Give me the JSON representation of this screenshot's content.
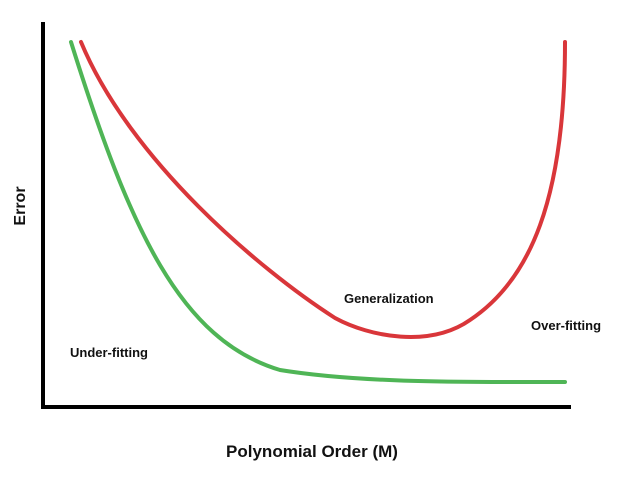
{
  "diagram": {
    "xlabel": "Polynomial Order (M)",
    "ylabel": "Error",
    "annotations": {
      "underfitting": "Under-fitting",
      "generalization": "Generalization",
      "overfitting": "Over-fitting"
    },
    "curves": [
      {
        "id": "test-error",
        "color": "#d9363a"
      },
      {
        "id": "training-error",
        "color": "#4fb556"
      }
    ],
    "axis_color": "#000000"
  }
}
